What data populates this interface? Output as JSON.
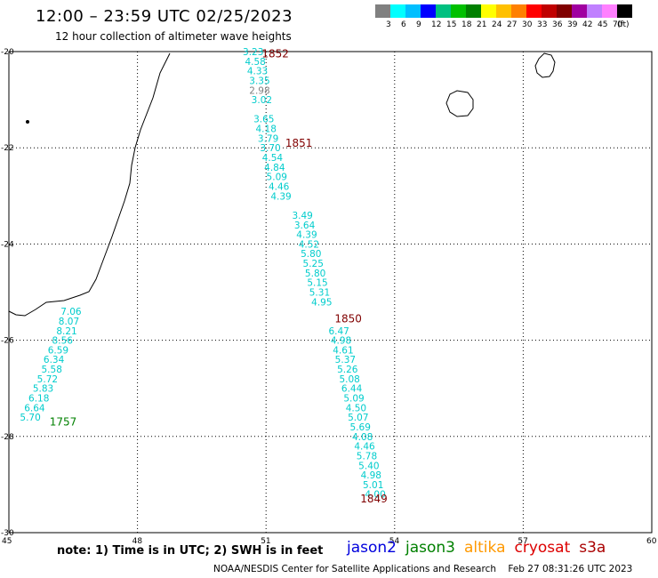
{
  "header": {
    "title": "12:00 – 23:59 UTC 02/25/2023",
    "subtitle": "12 hour collection of altimeter wave heights"
  },
  "colorbar": {
    "colors": [
      "#808080",
      "#00ffff",
      "#00bfff",
      "#0000ff",
      "#00c080",
      "#00c000",
      "#008000",
      "#ffff00",
      "#ffc000",
      "#ff8000",
      "#ff0000",
      "#c00000",
      "#800000",
      "#a000a0",
      "#c080ff",
      "#ff80ff",
      "#000000"
    ],
    "labels": [
      "3",
      "6",
      "9",
      "12",
      "15",
      "18",
      "21",
      "24",
      "27",
      "30",
      "33",
      "36",
      "39",
      "42",
      "45",
      "70",
      "(ft)"
    ]
  },
  "map": {
    "lon_ticks": [
      "45",
      "48",
      "51",
      "54",
      "57",
      "60"
    ],
    "lat_ticks": [
      "-20",
      "-22",
      "-24",
      "-26",
      "-28",
      "-30"
    ]
  },
  "chart_data": {
    "type": "scatter",
    "xlabel": "",
    "ylabel": "",
    "xlim": [
      45,
      60
    ],
    "ylim": [
      -30,
      -20
    ],
    "tracks": [
      {
        "time_label": "1757",
        "label_color": "#008000",
        "label_at": [
          45.95,
          -27.7
        ],
        "color": "#00cccc",
        "points": [
          {
            "lon": 46.45,
            "lat": -25.4,
            "swh": "7.06"
          },
          {
            "lon": 46.4,
            "lat": -25.6,
            "swh": "8.07"
          },
          {
            "lon": 46.35,
            "lat": -25.8,
            "swh": "8.21"
          },
          {
            "lon": 46.25,
            "lat": -26.0,
            "swh": "8.56"
          },
          {
            "lon": 46.15,
            "lat": -26.2,
            "swh": "6.59"
          },
          {
            "lon": 46.05,
            "lat": -26.4,
            "swh": "6.34"
          },
          {
            "lon": 46.0,
            "lat": -26.6,
            "swh": "5.58"
          },
          {
            "lon": 45.9,
            "lat": -26.8,
            "swh": "5.72"
          },
          {
            "lon": 45.8,
            "lat": -27.0,
            "swh": "5.83"
          },
          {
            "lon": 45.7,
            "lat": -27.2,
            "swh": "6.18"
          },
          {
            "lon": 45.6,
            "lat": -27.4,
            "swh": "6.64"
          },
          {
            "lon": 45.5,
            "lat": -27.6,
            "swh": "5.70"
          }
        ]
      },
      {
        "time_label": "1849",
        "label_color": "#800000",
        "label_at": [
          53.2,
          -29.3
        ],
        "color": "#00cccc",
        "points": [
          {
            "lon": 52.7,
            "lat": -25.8,
            "swh": "6.47"
          },
          {
            "lon": 52.75,
            "lat": -26.0,
            "swh": "4.98"
          },
          {
            "lon": 52.8,
            "lat": -26.2,
            "swh": "4.61"
          },
          {
            "lon": 52.85,
            "lat": -26.4,
            "swh": "5.37"
          },
          {
            "lon": 52.9,
            "lat": -26.6,
            "swh": "5.26"
          },
          {
            "lon": 52.95,
            "lat": -26.8,
            "swh": "5.08"
          },
          {
            "lon": 53.0,
            "lat": -27.0,
            "swh": "6.44"
          },
          {
            "lon": 53.05,
            "lat": -27.2,
            "swh": "5.09"
          },
          {
            "lon": 53.1,
            "lat": -27.4,
            "swh": "4.50"
          },
          {
            "lon": 53.15,
            "lat": -27.6,
            "swh": "5.07"
          },
          {
            "lon": 53.2,
            "lat": -27.8,
            "swh": "5.69"
          },
          {
            "lon": 53.25,
            "lat": -28.0,
            "swh": "4.08"
          },
          {
            "lon": 53.3,
            "lat": -28.2,
            "swh": "4.46"
          },
          {
            "lon": 53.35,
            "lat": -28.4,
            "swh": "5.78"
          },
          {
            "lon": 53.4,
            "lat": -28.6,
            "swh": "5.40"
          },
          {
            "lon": 53.45,
            "lat": -28.8,
            "swh": "4.98"
          },
          {
            "lon": 53.5,
            "lat": -29.0,
            "swh": "5.01"
          },
          {
            "lon": 53.55,
            "lat": -29.2,
            "swh": "4.00"
          }
        ]
      },
      {
        "time_label": "1850",
        "label_color": "#800000",
        "label_at": [
          52.6,
          -25.55
        ],
        "color": "#00cccc",
        "points": [
          {
            "lon": 51.85,
            "lat": -23.4,
            "swh": "3.49"
          },
          {
            "lon": 51.9,
            "lat": -23.6,
            "swh": "3.64"
          },
          {
            "lon": 51.95,
            "lat": -23.8,
            "swh": "4.39"
          },
          {
            "lon": 52.0,
            "lat": -24.0,
            "swh": "4.52"
          },
          {
            "lon": 52.05,
            "lat": -24.2,
            "swh": "5.80"
          },
          {
            "lon": 52.1,
            "lat": -24.4,
            "swh": "5.25"
          },
          {
            "lon": 52.15,
            "lat": -24.6,
            "swh": "5.80"
          },
          {
            "lon": 52.2,
            "lat": -24.8,
            "swh": "5.15"
          },
          {
            "lon": 52.25,
            "lat": -25.0,
            "swh": "5.31"
          },
          {
            "lon": 52.3,
            "lat": -25.2,
            "swh": "4.95"
          }
        ]
      },
      {
        "time_label": "1851",
        "label_color": "#800000",
        "label_at": [
          51.45,
          -21.9
        ],
        "color": "#00cccc",
        "points": [
          {
            "lon": 50.95,
            "lat": -21.4,
            "swh": "3.65"
          },
          {
            "lon": 51.0,
            "lat": -21.6,
            "swh": "4.18"
          },
          {
            "lon": 51.05,
            "lat": -21.8,
            "swh": "3.79"
          },
          {
            "lon": 51.1,
            "lat": -22.0,
            "swh": "3.70"
          },
          {
            "lon": 51.15,
            "lat": -22.2,
            "swh": "4.54"
          },
          {
            "lon": 51.2,
            "lat": -22.4,
            "swh": "4.84"
          },
          {
            "lon": 51.25,
            "lat": -22.6,
            "swh": "5.09"
          },
          {
            "lon": 51.3,
            "lat": -22.8,
            "swh": "4.46"
          },
          {
            "lon": 51.35,
            "lat": -23.0,
            "swh": "4.39"
          }
        ]
      },
      {
        "time_label": "1852",
        "label_color": "#800000",
        "label_at": [
          50.9,
          -20.05
        ],
        "color": "#00cccc",
        "points": [
          {
            "lon": 50.7,
            "lat": -20.0,
            "swh": "3.23"
          },
          {
            "lon": 50.75,
            "lat": -20.2,
            "swh": "4.58"
          },
          {
            "lon": 50.8,
            "lat": -20.4,
            "swh": "4.33"
          },
          {
            "lon": 50.85,
            "lat": -20.6,
            "swh": "3.35"
          },
          {
            "lon": 50.85,
            "lat": -20.8,
            "swh": "2.98"
          },
          {
            "lon": 50.9,
            "lat": -21.0,
            "swh": "3.02"
          }
        ]
      }
    ]
  },
  "footer": {
    "note": "note:  1) Time is in UTC;  2) SWH is in feet",
    "satellites": [
      {
        "name": "jason2",
        "color": "#0000dd"
      },
      {
        "name": "jason3",
        "color": "#008000"
      },
      {
        "name": "altika",
        "color": "#ff9900"
      },
      {
        "name": "cryosat",
        "color": "#dd0000"
      },
      {
        "name": "s3a",
        "color": "#aa0000"
      }
    ],
    "credit": "NOAA/NESDIS Center for Satellite Applications and Research",
    "timestamp": "Feb 27 08:31:26 UTC 2023"
  }
}
